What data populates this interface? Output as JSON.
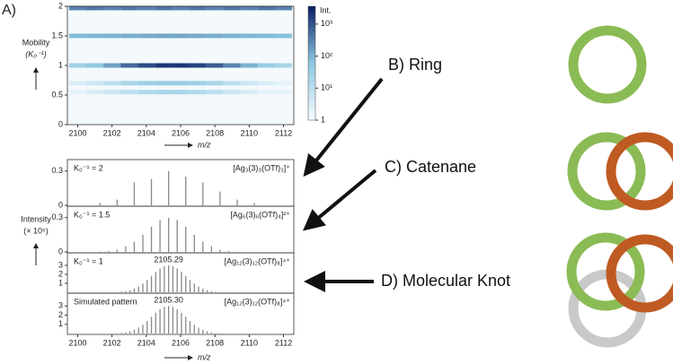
{
  "figure_label": "A)",
  "annotations": [
    "B) Ring",
    "C) Catenane",
    "D) Molecular Knot"
  ],
  "chart_data": [
    {
      "type": "heatmap",
      "ylabel": [
        "Mobility",
        "(K₀⁻¹)"
      ],
      "xlabel": "m/z",
      "xlim": [
        2099.4,
        2112.6
      ],
      "xticks": [
        2100,
        2102,
        2104,
        2106,
        2108,
        2110,
        2112
      ],
      "ylim": [
        0,
        2
      ],
      "yticks": [
        0,
        0.5,
        1,
        1.5,
        2
      ],
      "x": [
        2100,
        2101,
        2102,
        2103,
        2104,
        2105,
        2106,
        2107,
        2108,
        2109,
        2110,
        2111,
        2112
      ],
      "y": [
        1.97,
        1.5,
        1.0,
        0.7,
        0.55
      ],
      "z": [
        [
          300,
          400,
          300,
          400,
          300,
          400,
          300,
          400,
          300,
          400,
          300,
          400,
          300
        ],
        [
          80,
          90,
          100,
          110,
          120,
          130,
          130,
          120,
          110,
          100,
          90,
          80,
          70
        ],
        [
          30,
          50,
          150,
          600,
          1200,
          2000,
          2000,
          1500,
          800,
          300,
          100,
          40,
          20
        ],
        [
          3,
          5,
          10,
          20,
          30,
          40,
          40,
          30,
          20,
          10,
          5,
          3,
          2
        ],
        [
          2,
          3,
          5,
          10,
          15,
          20,
          20,
          15,
          10,
          5,
          3,
          2,
          2
        ]
      ],
      "colorbar_label": "Int.",
      "log_scale": true,
      "clim": [
        1,
        3600
      ],
      "cticks": [
        1,
        {
          "value": 10,
          "label": "10¹"
        },
        {
          "value": 100,
          "label": "10²"
        },
        {
          "value": 1000,
          "label": "10³"
        }
      ]
    },
    {
      "type": "stem",
      "ylabel": [
        "Intensity",
        "(× 10⁵)"
      ],
      "xlabel": "m/z",
      "color": "#888888",
      "xlim": [
        2099.4,
        2112.6
      ],
      "xticks": [
        2100,
        2102,
        2104,
        2106,
        2108,
        2110,
        2112
      ],
      "panels": [
        {
          "label": "K₀⁻¹ = 2",
          "formula": "[Ag₃(3)₃(OTf)₃]⁺",
          "ylim": [
            0,
            0.4
          ],
          "yticks": [
            0,
            0.3
          ],
          "x": [
            2101.3,
            2102.3,
            2103.3,
            2104.3,
            2105.3,
            2106.3,
            2107.3,
            2108.3,
            2109.3,
            2110.3
          ],
          "values": [
            0.02,
            0.05,
            0.2,
            0.23,
            0.3,
            0.25,
            0.2,
            0.12,
            0.05,
            0.02
          ]
        },
        {
          "label": "K₀⁻¹ = 1.5",
          "formula": "[Ag₆(3)₆(OTf)₄]²⁺",
          "ylim": [
            0,
            0.4
          ],
          "yticks": [
            0,
            0.3
          ],
          "x": [
            2101.3,
            2101.8,
            2102.3,
            2102.8,
            2103.3,
            2103.8,
            2104.3,
            2104.8,
            2105.3,
            2105.8,
            2106.3,
            2106.8,
            2107.3,
            2107.8,
            2108.3,
            2108.8,
            2109.3
          ],
          "values": [
            0.003,
            0.008,
            0.02,
            0.05,
            0.09,
            0.15,
            0.22,
            0.28,
            0.3,
            0.28,
            0.22,
            0.15,
            0.09,
            0.05,
            0.02,
            0.008,
            0.003
          ]
        },
        {
          "label": "K₀⁻¹ = 1",
          "formula": "[Ag₁₂(3)₁₂(OTf)₈]⁴⁺",
          "annotation": "2105.29",
          "ylim": [
            0,
            4.4
          ],
          "yticks": [
            1,
            2,
            3
          ],
          "x": [
            2102.3,
            2102.55,
            2102.8,
            2103.05,
            2103.3,
            2103.55,
            2103.8,
            2104.05,
            2104.3,
            2104.55,
            2104.8,
            2105.05,
            2105.3,
            2105.55,
            2105.8,
            2106.05,
            2106.3,
            2106.55,
            2106.8,
            2107.05,
            2107.3,
            2107.55,
            2107.8,
            2108.05,
            2108.3
          ],
          "values": [
            0.03,
            0.07,
            0.13,
            0.24,
            0.41,
            0.65,
            0.97,
            1.37,
            1.82,
            2.26,
            2.65,
            2.91,
            3.0,
            2.91,
            2.65,
            2.26,
            1.82,
            1.37,
            0.97,
            0.65,
            0.41,
            0.24,
            0.13,
            0.07,
            0.03
          ]
        },
        {
          "label": "Simulated pattern",
          "formula": "[Ag₁₂(3)₁₂(OTf)₈]⁴⁺",
          "annotation": "2105.30",
          "ylim": [
            0,
            4.4
          ],
          "yticks": [
            1,
            2,
            3
          ],
          "x": [
            2102.3,
            2102.55,
            2102.8,
            2103.05,
            2103.3,
            2103.55,
            2103.8,
            2104.05,
            2104.3,
            2104.55,
            2104.8,
            2105.05,
            2105.3,
            2105.55,
            2105.8,
            2106.05,
            2106.3,
            2106.55,
            2106.8,
            2107.05,
            2107.3,
            2107.55,
            2107.8,
            2108.05,
            2108.3
          ],
          "values": [
            0.03,
            0.07,
            0.13,
            0.24,
            0.41,
            0.65,
            0.97,
            1.37,
            1.82,
            2.26,
            2.65,
            2.91,
            3.0,
            2.91,
            2.65,
            2.26,
            1.82,
            1.37,
            0.97,
            0.65,
            0.41,
            0.24,
            0.13,
            0.07,
            0.03
          ]
        }
      ]
    }
  ]
}
